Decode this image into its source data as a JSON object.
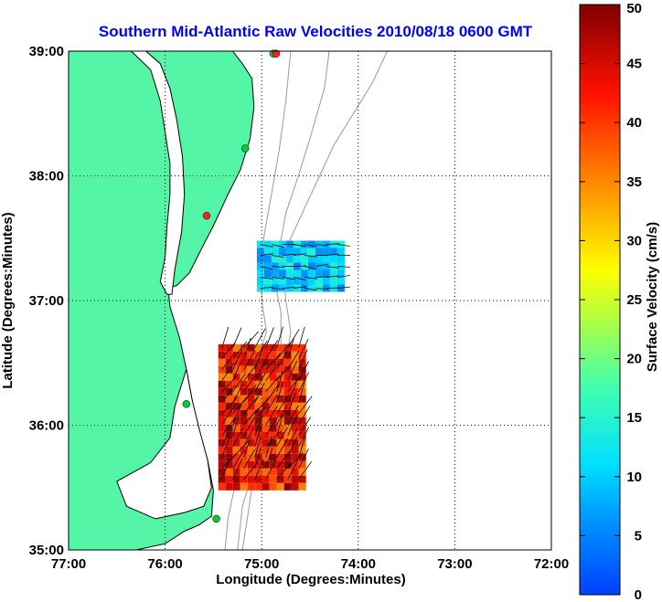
{
  "chart_data": {
    "type": "map",
    "title": "Southern Mid-Atlantic Raw Velocities 2010/08/18 0600 GMT",
    "xlabel": "Longitude (Degrees:Minutes)",
    "ylabel": "Latitude (Degrees:Minutes)",
    "x_ticks": [
      "77:00",
      "76:00",
      "75:00",
      "74:00",
      "73:00",
      "72:00"
    ],
    "y_ticks": [
      "39:00",
      "38:00",
      "37:00",
      "36:00",
      "35:00"
    ],
    "xlim": [
      -77,
      -72
    ],
    "ylim": [
      35,
      39
    ],
    "grid": "dotted",
    "colorbar": {
      "label": "Surface Velocity (cm/s)",
      "ticks": [
        "50",
        "45",
        "40",
        "35",
        "30",
        "25",
        "20",
        "15",
        "10",
        "5",
        "0"
      ],
      "range": [
        0,
        50
      ],
      "colormap": "jet"
    },
    "colors": {
      "land": "#55f5a8",
      "coastline": "#000000",
      "bathymetry": "#999999",
      "grid": "#000000"
    },
    "station_markers": [
      {
        "lon": -74.88,
        "lat": 38.98,
        "color": "#00cc33"
      },
      {
        "lon": -74.85,
        "lat": 38.98,
        "color": "#ff2020"
      },
      {
        "lon": -75.17,
        "lat": 38.22,
        "color": "#00cc33"
      },
      {
        "lon": -75.57,
        "lat": 37.68,
        "color": "#ff2020"
      },
      {
        "lon": -75.78,
        "lat": 36.17,
        "color": "#00cc33"
      },
      {
        "lon": -75.47,
        "lat": 35.25,
        "color": "#00cc33"
      }
    ],
    "velocity_regions": [
      {
        "name": "north",
        "lon_range": [
          -75.05,
          -74.2
        ],
        "lat_range": [
          37.08,
          37.48
        ],
        "speed_cms": [
          5,
          15
        ]
      },
      {
        "name": "south",
        "lon_range": [
          -75.45,
          -74.55
        ],
        "lat_range": [
          35.48,
          36.65
        ],
        "speed_cms": [
          35,
          50
        ]
      }
    ]
  }
}
